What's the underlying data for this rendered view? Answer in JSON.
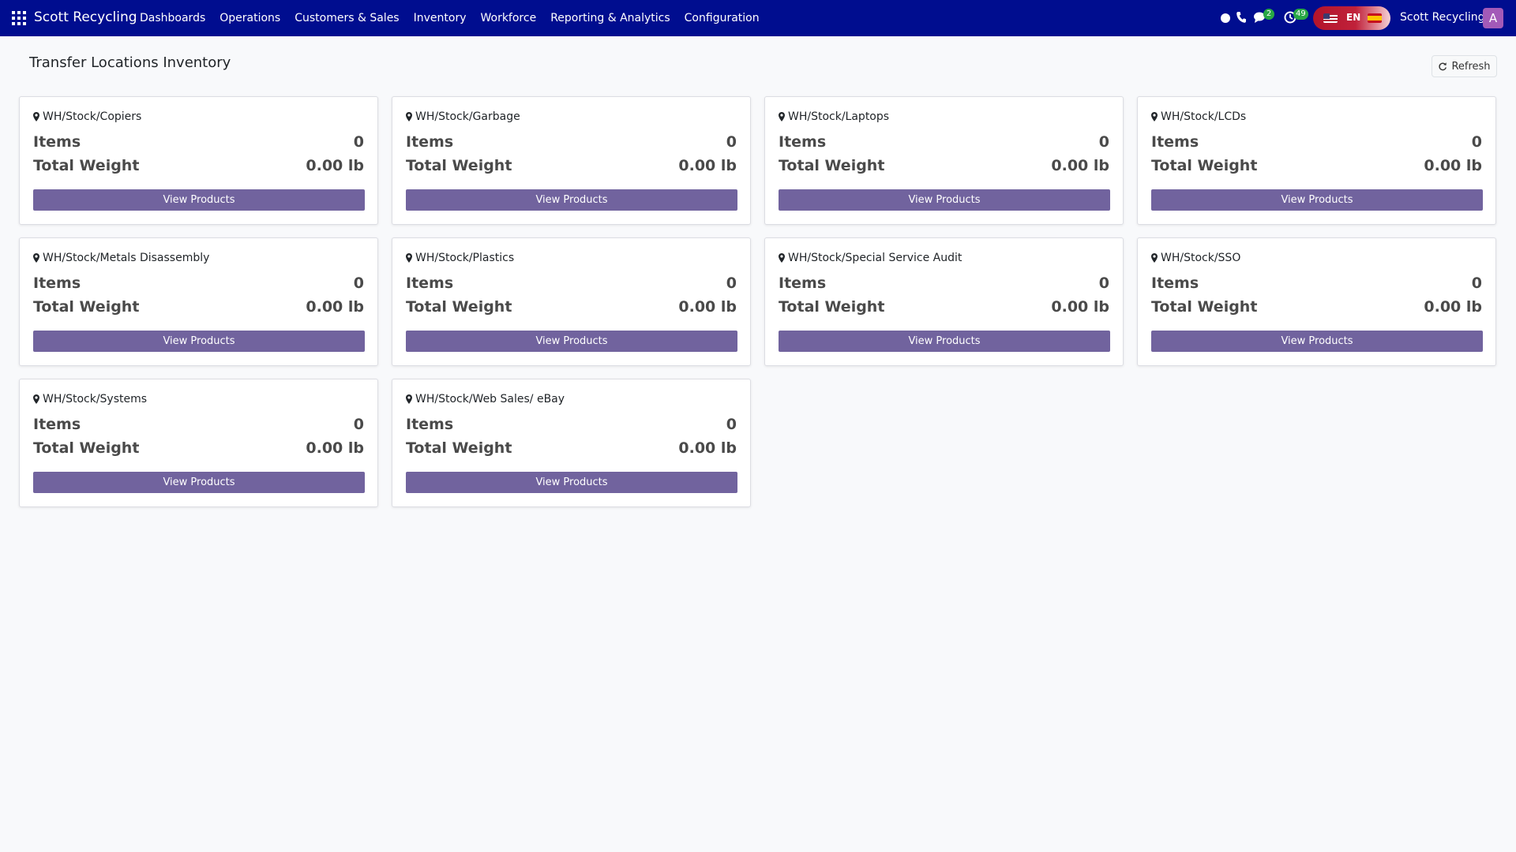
{
  "navbar": {
    "brand": "Scott Recycling",
    "menu": [
      "Dashboards",
      "Operations",
      "Customers & Sales",
      "Inventory",
      "Workforce",
      "Reporting & Analytics",
      "Configuration"
    ],
    "chat_badge": "2",
    "activity_badge": "49",
    "language": "EN",
    "company": "Scott Recycling",
    "avatar_letter": "A",
    "colors": {
      "bar": "#000d8f",
      "badge": "#28a745",
      "avatar": "#a35ab8"
    }
  },
  "page": {
    "title": "Transfer Locations Inventory",
    "refresh_label": "Refresh"
  },
  "labels": {
    "items": "Items",
    "total_weight": "Total Weight",
    "view_products": "View Products"
  },
  "locations": [
    {
      "name": "WH/Stock/Copiers",
      "items": "0",
      "weight": "0.00 lb"
    },
    {
      "name": "WH/Stock/Garbage",
      "items": "0",
      "weight": "0.00 lb"
    },
    {
      "name": "WH/Stock/Laptops",
      "items": "0",
      "weight": "0.00 lb"
    },
    {
      "name": "WH/Stock/LCDs",
      "items": "0",
      "weight": "0.00 lb"
    },
    {
      "name": "WH/Stock/Metals Disassembly",
      "items": "0",
      "weight": "0.00 lb"
    },
    {
      "name": "WH/Stock/Plastics",
      "items": "0",
      "weight": "0.00 lb"
    },
    {
      "name": "WH/Stock/Special Service Audit",
      "items": "0",
      "weight": "0.00 lb"
    },
    {
      "name": "WH/Stock/SSO",
      "items": "0",
      "weight": "0.00 lb"
    },
    {
      "name": "WH/Stock/Systems",
      "items": "0",
      "weight": "0.00 lb"
    },
    {
      "name": "WH/Stock/Web Sales/ eBay",
      "items": "0",
      "weight": "0.00 lb"
    }
  ],
  "accent_color": "#71639e"
}
